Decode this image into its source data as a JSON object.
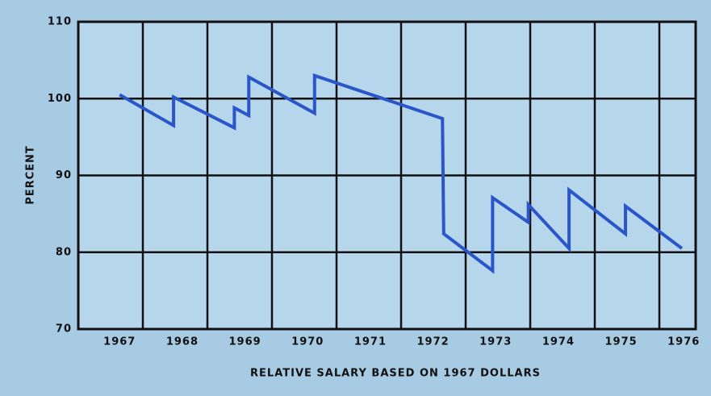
{
  "chart_data": {
    "type": "line",
    "xlabel": "RELATIVE SALARY BASED ON 1967 DOLLARS",
    "ylabel": "PERCENT",
    "x": [
      1967,
      1967.86,
      1967.86,
      1968.83,
      1968.83,
      1969.06,
      1969.06,
      1970.11,
      1970.11,
      1972.15,
      1972.17,
      1972.95,
      1972.95,
      1973.52,
      1973.52,
      1974.17,
      1974.17,
      1975.07,
      1975.07,
      1975.97
    ],
    "series": [
      {
        "name": "Relative salary",
        "color": "#2a56c9",
        "values": [
          100.5,
          96.5,
          100.2,
          96.2,
          98.8,
          97.8,
          102.8,
          98.1,
          103.0,
          97.4,
          82.4,
          77.6,
          87.1,
          83.9,
          86.2,
          80.5,
          88.1,
          82.4,
          86.0,
          80.5
        ]
      }
    ],
    "xlim": [
      1966.34,
      1976.19
    ],
    "xticks": [
      1967,
      1968,
      1969,
      1970,
      1971,
      1972,
      1973,
      1974,
      1975,
      1976
    ],
    "ylim": [
      70,
      110
    ],
    "yticks": [
      70,
      80,
      90,
      100,
      110
    ],
    "grid": true
  }
}
